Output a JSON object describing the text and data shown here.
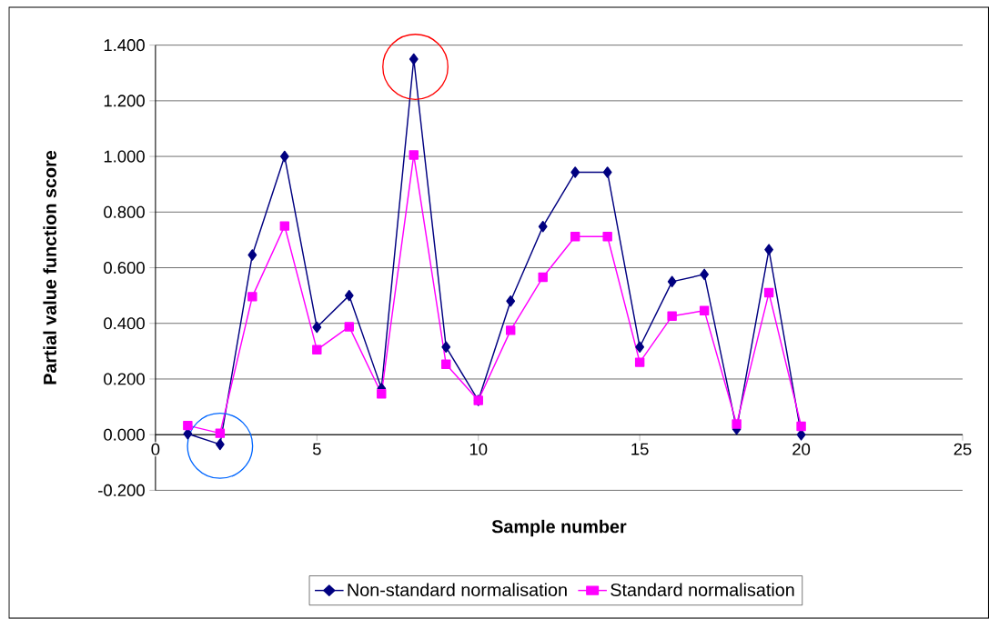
{
  "chart_data": {
    "type": "line",
    "xlabel": "Sample number",
    "ylabel": "Partial value function score",
    "x": [
      1,
      2,
      3,
      4,
      5,
      6,
      7,
      8,
      9,
      10,
      11,
      12,
      13,
      14,
      15,
      16,
      17,
      18,
      19,
      20
    ],
    "series": [
      {
        "name": "Non-standard normalisation",
        "color": "#000080",
        "marker": "diamond",
        "values": [
          0.003,
          -0.035,
          0.646,
          1.0,
          0.386,
          0.5,
          0.166,
          1.35,
          0.315,
          0.123,
          0.48,
          0.748,
          0.943,
          0.943,
          0.315,
          0.55,
          0.576,
          0.02,
          0.665,
          0.0
        ]
      },
      {
        "name": "Standard normalisation",
        "color": "#ff00ff",
        "marker": "square",
        "values": [
          0.033,
          0.005,
          0.496,
          0.75,
          0.305,
          0.388,
          0.147,
          1.005,
          0.253,
          0.123,
          0.375,
          0.566,
          0.712,
          0.712,
          0.26,
          0.426,
          0.446,
          0.038,
          0.51,
          0.03
        ]
      }
    ],
    "xlim": [
      0,
      25
    ],
    "xticks": [
      0,
      5,
      10,
      15,
      20,
      25
    ],
    "ylim": [
      -0.2,
      1.4
    ],
    "yticks": [
      {
        "value": -0.2,
        "label": "-0.200"
      },
      {
        "value": 0,
        "label": "0.000"
      },
      {
        "value": 0.2,
        "label": "0.200"
      },
      {
        "value": 0.4,
        "label": "0.400"
      },
      {
        "value": 0.6,
        "label": "0.600"
      },
      {
        "value": 0.8,
        "label": "0.800"
      },
      {
        "value": 1.0,
        "label": "1.000"
      },
      {
        "value": 1.2,
        "label": "1.200"
      },
      {
        "value": 1.4,
        "label": "1.400"
      }
    ],
    "grid": "y",
    "legend": "bottom",
    "line_style": "solid"
  }
}
